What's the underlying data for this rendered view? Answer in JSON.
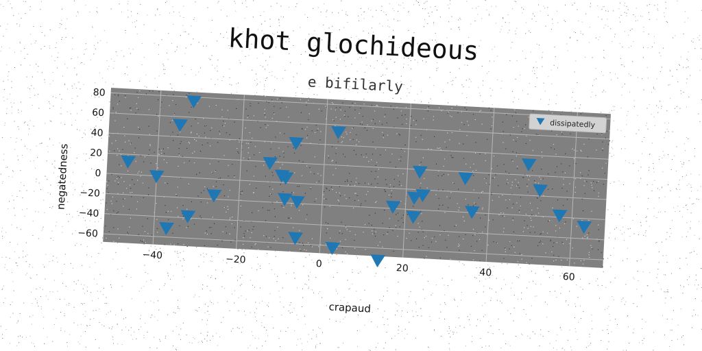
{
  "chart_data": {
    "type": "scatter",
    "title": "khot glochideous",
    "subtitle": "e bifilarly",
    "xlabel": "crapaud",
    "ylabel": "negatedness",
    "xlim": [
      -52,
      68
    ],
    "ylim": [
      -68,
      85
    ],
    "xticks": [
      -40,
      -20,
      0,
      20,
      40,
      60
    ],
    "yticks": [
      -60,
      -40,
      -20,
      0,
      20,
      40,
      60,
      80
    ],
    "grid": true,
    "legend_position": "top-right",
    "marker": "triangle-down",
    "series": [
      {
        "name": "dissipatedly",
        "color": "#1f77b4",
        "points": [
          [
            -47,
            13
          ],
          [
            -40,
            0
          ],
          [
            -37,
            -51
          ],
          [
            -35,
            52
          ],
          [
            -32,
            76
          ],
          [
            -32,
            -38
          ],
          [
            -26,
            -16
          ],
          [
            -13,
            19
          ],
          [
            -10,
            7
          ],
          [
            -9,
            5
          ],
          [
            -9,
            -16
          ],
          [
            -7,
            40
          ],
          [
            -6,
            -18
          ],
          [
            -6,
            -54
          ],
          [
            3,
            53
          ],
          [
            3,
            -62
          ],
          [
            14,
            -72
          ],
          [
            17,
            -18
          ],
          [
            22,
            -8
          ],
          [
            22,
            -27
          ],
          [
            23,
            18
          ],
          [
            24,
            -5
          ],
          [
            34,
            14
          ],
          [
            36,
            -19
          ],
          [
            49,
            31
          ],
          [
            52,
            6
          ],
          [
            57,
            -18
          ],
          [
            63,
            -28
          ]
        ]
      }
    ]
  }
}
